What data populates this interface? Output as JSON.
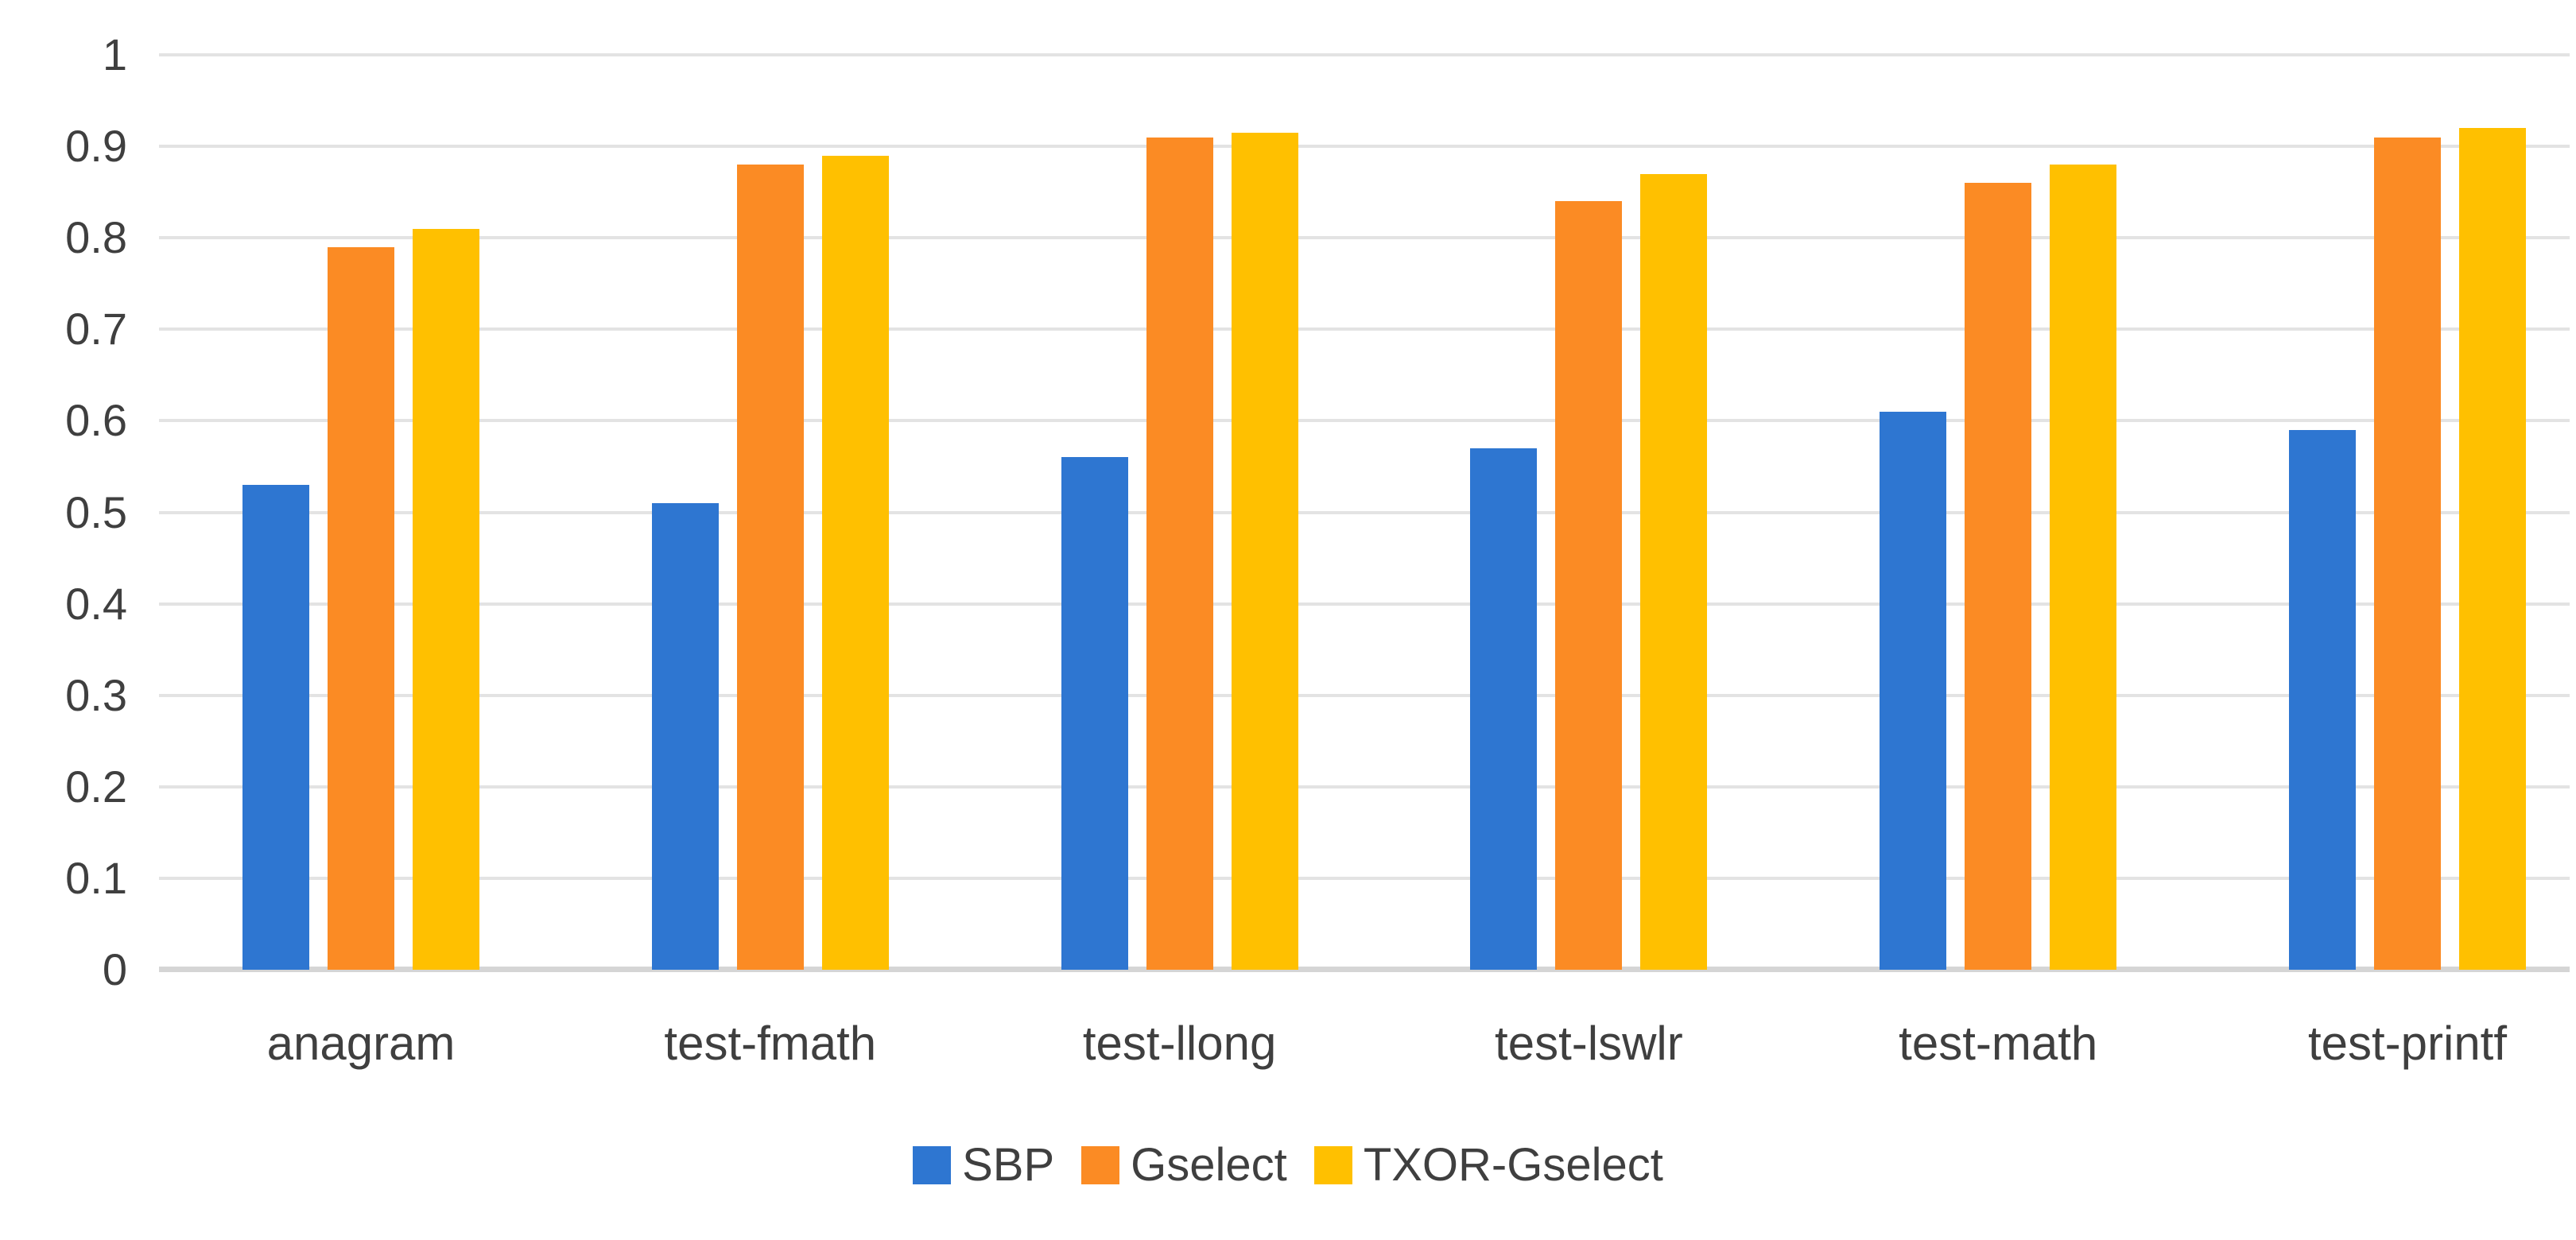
{
  "chart_data": {
    "type": "bar",
    "title": "",
    "xlabel": "",
    "ylabel": "",
    "categories": [
      "anagram",
      "test-fmath",
      "test-llong",
      "test-lswlr",
      "test-math",
      "test-printf"
    ],
    "series": [
      {
        "name": "SBP",
        "color": "#2e76d1",
        "values": [
          0.53,
          0.51,
          0.56,
          0.57,
          0.61,
          0.59
        ]
      },
      {
        "name": "Gselect",
        "color": "#fb8b24",
        "values": [
          0.79,
          0.88,
          0.91,
          0.84,
          0.86,
          0.91
        ]
      },
      {
        "name": "TXOR-Gselect",
        "color": "#ffc000",
        "values": [
          0.81,
          0.89,
          0.915,
          0.87,
          0.88,
          0.92
        ]
      }
    ],
    "ylim": [
      0,
      1
    ],
    "ytick_step": 0.1,
    "ytick_labels": [
      "0",
      "0.1",
      "0.2",
      "0.3",
      "0.4",
      "0.5",
      "0.6",
      "0.7",
      "0.8",
      "0.9",
      "1"
    ],
    "grid": true,
    "legend_position": "bottom"
  },
  "style_colors": {
    "gridline": "#e3e3e3",
    "axis_line": "#d5d5d5",
    "text": "#3f3f3f",
    "background": "#ffffff"
  }
}
